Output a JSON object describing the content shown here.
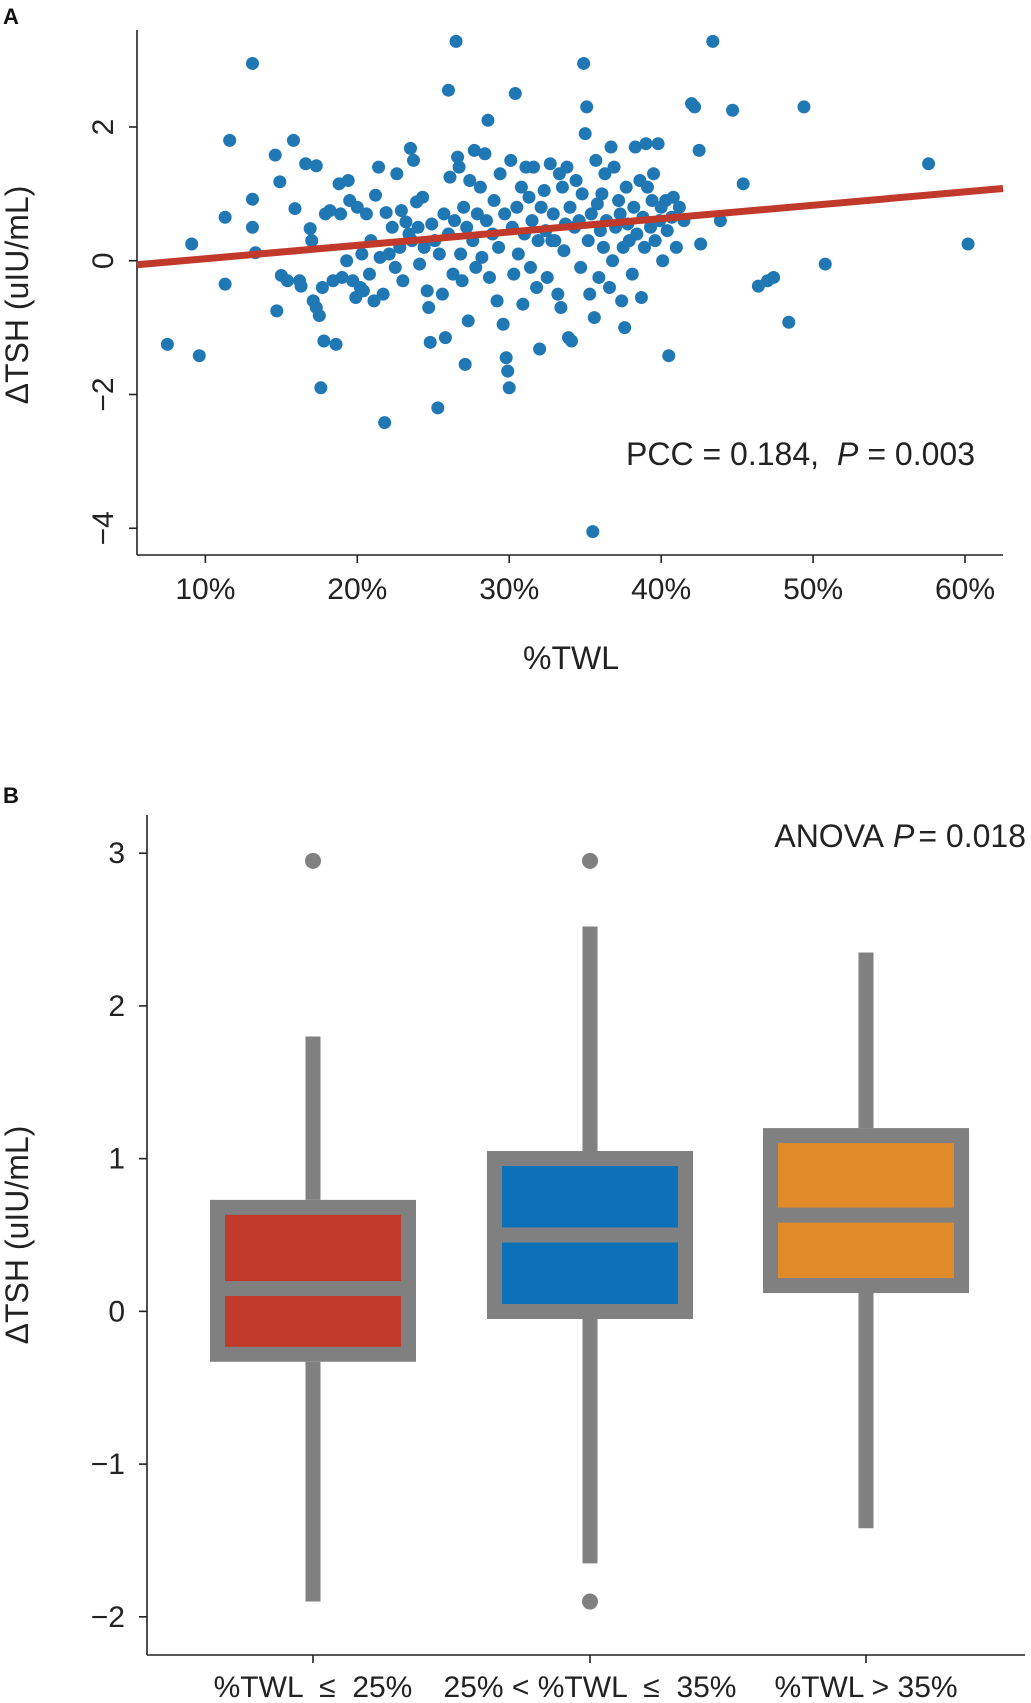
{
  "chart_data": [
    {
      "panel": "A",
      "type": "scatter",
      "xlabel": "%TWL",
      "ylabel": "ΔTSH (uIU/mL)",
      "x_ticks": [
        "10%",
        "20%",
        "30%",
        "40%",
        "50%",
        "60%"
      ],
      "x_tick_values": [
        10,
        20,
        30,
        40,
        50,
        60
      ],
      "y_ticks": [
        "−4",
        "−2",
        "0",
        "2"
      ],
      "y_tick_values": [
        -4,
        -2,
        0,
        2
      ],
      "xlim": [
        5.5,
        62.5
      ],
      "ylim": [
        -4.4,
        3.45
      ],
      "point_color": "#1f77b4",
      "fit_color": "#c0392b",
      "fit_line": {
        "x": [
          5.5,
          62.5
        ],
        "y": [
          -0.06,
          1.08
        ]
      },
      "annotation": {
        "prefix": "PCC = 0.184,",
        "p_label": "P",
        "suffix": "= 0.003"
      },
      "points": [
        [
          7.5,
          -1.25
        ],
        [
          9.1,
          0.25
        ],
        [
          9.6,
          -1.42
        ],
        [
          11.3,
          0.65
        ],
        [
          11.3,
          -0.35
        ],
        [
          11.6,
          1.8
        ],
        [
          13.1,
          2.95
        ],
        [
          13.1,
          0.92
        ],
        [
          13.1,
          0.5
        ],
        [
          13.3,
          0.12
        ],
        [
          14.6,
          1.58
        ],
        [
          14.7,
          -0.75
        ],
        [
          14.9,
          1.18
        ],
        [
          15.0,
          -0.22
        ],
        [
          15.4,
          -0.3
        ],
        [
          15.8,
          1.8
        ],
        [
          15.9,
          0.78
        ],
        [
          16.2,
          -0.3
        ],
        [
          16.3,
          -0.38
        ],
        [
          16.6,
          1.45
        ],
        [
          16.9,
          0.48
        ],
        [
          17.0,
          0.3
        ],
        [
          17.1,
          -0.6
        ],
        [
          17.3,
          1.42
        ],
        [
          17.3,
          -0.7
        ],
        [
          17.5,
          -0.82
        ],
        [
          17.6,
          -1.9
        ],
        [
          17.7,
          -0.4
        ],
        [
          17.8,
          -1.2
        ],
        [
          17.9,
          0.7
        ],
        [
          18.2,
          0.75
        ],
        [
          18.4,
          -0.3
        ],
        [
          18.6,
          -1.25
        ],
        [
          18.8,
          1.15
        ],
        [
          18.9,
          0.7
        ],
        [
          19.0,
          -0.25
        ],
        [
          19.3,
          0.0
        ],
        [
          19.4,
          1.2
        ],
        [
          19.5,
          0.9
        ],
        [
          19.7,
          -0.3
        ],
        [
          19.9,
          -0.55
        ],
        [
          20.0,
          0.8
        ],
        [
          20.2,
          -0.4
        ],
        [
          20.3,
          0.1
        ],
        [
          20.4,
          -0.45
        ],
        [
          20.6,
          0.7
        ],
        [
          20.8,
          -0.2
        ],
        [
          20.9,
          0.3
        ],
        [
          21.1,
          -0.6
        ],
        [
          21.2,
          0.98
        ],
        [
          21.4,
          1.4
        ],
        [
          21.5,
          0.05
        ],
        [
          21.7,
          -0.5
        ],
        [
          21.8,
          -2.42
        ],
        [
          21.9,
          0.72
        ],
        [
          22.1,
          0.1
        ],
        [
          22.3,
          0.5
        ],
        [
          22.5,
          -0.1
        ],
        [
          22.6,
          1.3
        ],
        [
          22.8,
          0.2
        ],
        [
          22.9,
          0.75
        ],
        [
          23.0,
          -0.3
        ],
        [
          23.2,
          0.58
        ],
        [
          23.4,
          0.4
        ],
        [
          23.5,
          1.68
        ],
        [
          23.6,
          0.3
        ],
        [
          23.7,
          1.5
        ],
        [
          23.9,
          0.88
        ],
        [
          24.0,
          0.5
        ],
        [
          24.1,
          -0.05
        ],
        [
          24.3,
          0.95
        ],
        [
          24.4,
          0.2
        ],
        [
          24.6,
          -0.45
        ],
        [
          24.7,
          -0.7
        ],
        [
          24.8,
          -1.22
        ],
        [
          24.9,
          0.55
        ],
        [
          25.1,
          0.3
        ],
        [
          25.3,
          -2.2
        ],
        [
          25.4,
          0.1
        ],
        [
          25.6,
          -0.5
        ],
        [
          25.7,
          0.7
        ],
        [
          25.8,
          -1.15
        ],
        [
          26.0,
          0.4
        ],
        [
          26.0,
          2.55
        ],
        [
          26.1,
          1.25
        ],
        [
          26.3,
          -0.2
        ],
        [
          26.4,
          0.6
        ],
        [
          26.5,
          3.28
        ],
        [
          26.6,
          1.55
        ],
        [
          26.7,
          1.4
        ],
        [
          26.8,
          0.1
        ],
        [
          26.9,
          -0.3
        ],
        [
          27.0,
          0.8
        ],
        [
          27.1,
          -1.55
        ],
        [
          27.2,
          0.5
        ],
        [
          27.3,
          -0.9
        ],
        [
          27.4,
          1.2
        ],
        [
          27.6,
          0.3
        ],
        [
          27.7,
          1.65
        ],
        [
          27.8,
          -0.1
        ],
        [
          27.9,
          0.7
        ],
        [
          28.1,
          1.1
        ],
        [
          28.2,
          0.05
        ],
        [
          28.4,
          1.6
        ],
        [
          28.5,
          0.6
        ],
        [
          28.6,
          2.1
        ],
        [
          28.7,
          -0.25
        ],
        [
          28.9,
          0.4
        ],
        [
          29.0,
          0.9
        ],
        [
          29.2,
          -0.6
        ],
        [
          29.3,
          0.2
        ],
        [
          29.4,
          1.3
        ],
        [
          29.6,
          -0.95
        ],
        [
          29.7,
          0.7
        ],
        [
          29.8,
          -1.45
        ],
        [
          29.9,
          -1.65
        ],
        [
          30.0,
          -1.9
        ],
        [
          30.1,
          1.5
        ],
        [
          30.2,
          0.5
        ],
        [
          30.3,
          -0.2
        ],
        [
          30.4,
          2.5
        ],
        [
          30.5,
          0.8
        ],
        [
          30.6,
          0.1
        ],
        [
          30.8,
          1.1
        ],
        [
          30.9,
          -0.65
        ],
        [
          31.0,
          0.4
        ],
        [
          31.1,
          1.4
        ],
        [
          31.3,
          0.95
        ],
        [
          31.4,
          -0.1
        ],
        [
          31.5,
          0.6
        ],
        [
          31.6,
          1.4
        ],
        [
          31.8,
          -0.4
        ],
        [
          31.9,
          0.3
        ],
        [
          32.0,
          -1.32
        ],
        [
          32.1,
          0.8
        ],
        [
          32.3,
          1.05
        ],
        [
          32.4,
          0.45
        ],
        [
          32.5,
          -0.25
        ],
        [
          32.7,
          1.45
        ],
        [
          32.8,
          0.3
        ],
        [
          32.9,
          0.7
        ],
        [
          33.0,
          0.3
        ],
        [
          33.2,
          -0.5
        ],
        [
          33.3,
          1.3
        ],
        [
          33.4,
          -0.7
        ],
        [
          33.5,
          1.1
        ],
        [
          33.6,
          0.15
        ],
        [
          33.7,
          0.55
        ],
        [
          33.8,
          1.4
        ],
        [
          33.9,
          -1.15
        ],
        [
          34.0,
          0.8
        ],
        [
          34.1,
          -1.2
        ],
        [
          34.3,
          0.5
        ],
        [
          34.4,
          1.2
        ],
        [
          34.6,
          0.6
        ],
        [
          34.7,
          -0.1
        ],
        [
          34.8,
          1.0
        ],
        [
          34.9,
          2.95
        ],
        [
          35.0,
          1.9
        ],
        [
          35.1,
          2.3
        ],
        [
          35.2,
          0.3
        ],
        [
          35.3,
          -0.5
        ],
        [
          35.4,
          0.7
        ],
        [
          35.5,
          -4.05
        ],
        [
          35.6,
          -0.85
        ],
        [
          35.7,
          1.5
        ],
        [
          35.8,
          0.85
        ],
        [
          35.9,
          -0.25
        ],
        [
          36.0,
          0.45
        ],
        [
          36.1,
          1.0
        ],
        [
          36.2,
          0.2
        ],
        [
          36.3,
          1.3
        ],
        [
          36.4,
          0.6
        ],
        [
          36.6,
          -0.4
        ],
        [
          36.7,
          1.7
        ],
        [
          36.8,
          0.0
        ],
        [
          36.9,
          1.4
        ],
        [
          37.0,
          0.5
        ],
        [
          37.2,
          0.9
        ],
        [
          37.3,
          0.7
        ],
        [
          37.4,
          -0.6
        ],
        [
          37.5,
          0.2
        ],
        [
          37.6,
          -1.0
        ],
        [
          37.7,
          1.1
        ],
        [
          37.8,
          0.55
        ],
        [
          37.9,
          0.3
        ],
        [
          38.1,
          -0.2
        ],
        [
          38.2,
          0.8
        ],
        [
          38.3,
          1.7
        ],
        [
          38.4,
          0.4
        ],
        [
          38.6,
          1.2
        ],
        [
          38.7,
          -0.55
        ],
        [
          38.8,
          0.65
        ],
        [
          38.9,
          0.2
        ],
        [
          39.0,
          1.75
        ],
        [
          39.1,
          1.1
        ],
        [
          39.3,
          0.5
        ],
        [
          39.4,
          0.9
        ],
        [
          39.5,
          1.3
        ],
        [
          39.6,
          0.3
        ],
        [
          39.8,
          1.75
        ],
        [
          39.9,
          0.6
        ],
        [
          40.0,
          0.8
        ],
        [
          40.1,
          0.0
        ],
        [
          40.3,
          0.9
        ],
        [
          40.4,
          0.45
        ],
        [
          40.5,
          -1.42
        ],
        [
          40.7,
          0.65
        ],
        [
          40.8,
          0.95
        ],
        [
          41.0,
          0.2
        ],
        [
          41.2,
          0.8
        ],
        [
          41.5,
          0.6
        ],
        [
          42.0,
          2.35
        ],
        [
          42.2,
          2.3
        ],
        [
          42.5,
          1.65
        ],
        [
          42.6,
          0.25
        ],
        [
          43.4,
          3.28
        ],
        [
          43.9,
          0.6
        ],
        [
          44.7,
          2.25
        ],
        [
          45.4,
          1.15
        ],
        [
          46.4,
          -0.38
        ],
        [
          47.0,
          -0.3
        ],
        [
          47.4,
          -0.25
        ],
        [
          48.4,
          -0.92
        ],
        [
          49.4,
          2.3
        ],
        [
          50.8,
          -0.05
        ],
        [
          57.6,
          1.45
        ],
        [
          60.2,
          0.25
        ]
      ]
    },
    {
      "panel": "B",
      "type": "box",
      "xlabel": "",
      "ylabel": "ΔTSH (uIU/mL)",
      "categories": [
        "%TWL  ≤  25%",
        "25% < %TWL  ≤  35%",
        "%TWL > 35%"
      ],
      "y_ticks": [
        "−2",
        "−1",
        "0",
        "1",
        "2",
        "3"
      ],
      "y_tick_values": [
        -2,
        -1,
        0,
        1,
        2,
        3
      ],
      "ylim": [
        -2.25,
        3.25
      ],
      "box_outline_color": "#808080",
      "boxes": [
        {
          "q1": -0.33,
          "median": 0.15,
          "q3": 0.73,
          "whisker_low": -1.9,
          "whisker_high": 1.8,
          "outliers": [
            2.95
          ],
          "fill": "#c0392b"
        },
        {
          "q1": -0.05,
          "median": 0.5,
          "q3": 1.05,
          "whisker_low": -1.65,
          "whisker_high": 2.52,
          "outliers": [
            2.95,
            -1.9
          ],
          "fill": "#0b72b8"
        },
        {
          "q1": 0.12,
          "median": 0.63,
          "q3": 1.2,
          "whisker_low": -1.42,
          "whisker_high": 2.35,
          "outliers": [],
          "fill": "#e08a2a"
        }
      ],
      "annotation": {
        "prefix": "ANOVA",
        "p_label": "P",
        "suffix": "= 0.018"
      }
    }
  ]
}
